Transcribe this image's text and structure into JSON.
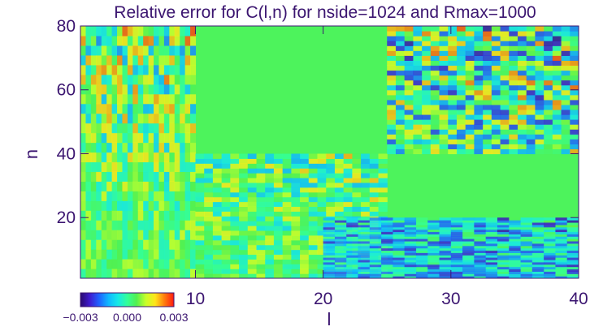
{
  "chart_data": {
    "type": "heatmap",
    "title": "Relative error for C(l,n) for nside=1024 and Rmax=1000",
    "xlabel": "l",
    "ylabel": "n",
    "xlim": [
      1,
      40
    ],
    "ylim": [
      1,
      80
    ],
    "x_ticks": [
      "10",
      "20",
      "30",
      "40"
    ],
    "x_tick_values": [
      10,
      20,
      30,
      40
    ],
    "y_ticks": [
      "20",
      "40",
      "60",
      "80"
    ],
    "y_tick_values": [
      20,
      40,
      60,
      80
    ],
    "colorbar": {
      "min": -0.003,
      "max": 0.003,
      "tick_labels": [
        "−0.003",
        "0.000",
        "0.003"
      ],
      "tick_values": [
        -0.003,
        0.0,
        0.003
      ]
    },
    "grid": false,
    "summary": [
      {
        "l_range": [
          1,
          10
        ],
        "n_range": [
          1,
          80
        ],
        "typical_error": 0.0005
      },
      {
        "l_range": [
          10,
          25
        ],
        "n_range": [
          1,
          40
        ],
        "typical_error": 0.0004
      },
      {
        "l_range": [
          20,
          40
        ],
        "n_range": [
          1,
          20
        ],
        "typical_error": -0.001
      },
      {
        "l_range": [
          25,
          40
        ],
        "n_range": [
          40,
          80
        ],
        "typical_error": 0.0
      }
    ]
  },
  "colors": {
    "text": "#3b1570",
    "colormap": [
      "#2a0a6e",
      "#3f1bd0",
      "#1f63ff",
      "#10b8ff",
      "#16e8e8",
      "#33ff9a",
      "#52f050",
      "#c8ff2a",
      "#ffe51a",
      "#ff7a0f",
      "#ff1a10"
    ]
  }
}
